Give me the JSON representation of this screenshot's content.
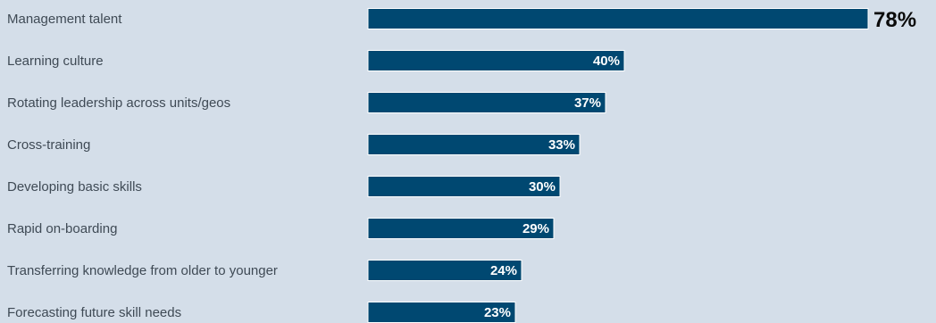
{
  "chart_data": {
    "type": "bar",
    "orientation": "horizontal",
    "categories": [
      "Management talent",
      "Learning culture",
      "Rotating leadership across units/geos",
      "Cross-training",
      "Developing basic skills",
      "Rapid on-boarding",
      "Transferring knowledge from older to younger",
      "Forecasting future skill needs"
    ],
    "values": [
      78,
      40,
      37,
      33,
      30,
      29,
      24,
      23
    ],
    "value_labels": [
      "78%",
      "40%",
      "37%",
      "33%",
      "30%",
      "29%",
      "24%",
      "23%"
    ],
    "xlim": [
      0,
      78
    ],
    "grid": false,
    "legend": "none",
    "bar_color": "#004871",
    "background_color": "#d4dee9"
  }
}
